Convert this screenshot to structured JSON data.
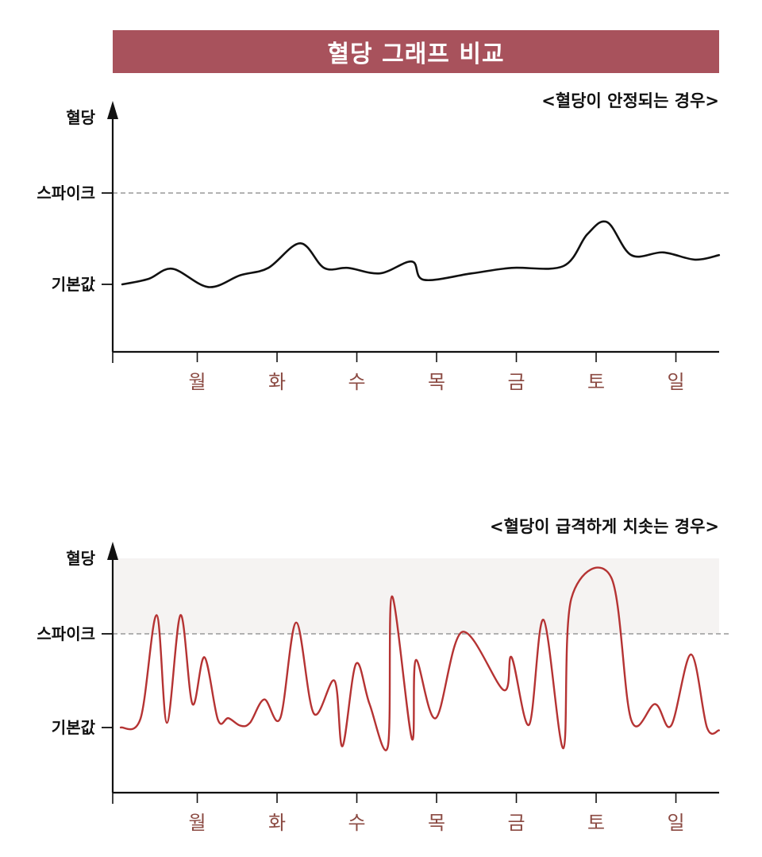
{
  "banner": {
    "title": "혈당 그래프 비교"
  },
  "colors": {
    "banner": "#a8525c",
    "stable_line": "#111111",
    "spike_line": "#b53333",
    "day_label": "#8b4a42",
    "danger_zone": "#f5f3f2",
    "threshold": "#999999"
  },
  "chart_data": [
    {
      "type": "line",
      "subtitle": "<혈당이 안정되는 경우>",
      "ylabel": "혈당",
      "y_levels": [
        "스파이크",
        "기본값"
      ],
      "categories": [
        "월",
        "화",
        "수",
        "목",
        "금",
        "토",
        "일"
      ],
      "grid": false,
      "spike_threshold_line": true,
      "xlim": [
        0,
        7.6
      ],
      "ylim": [
        -0.7,
        2.3
      ],
      "series": [
        {
          "x": [
            0.12,
            0.45,
            0.75,
            1.2,
            1.6,
            1.95,
            2.35,
            2.65,
            2.95,
            3.35,
            3.75,
            3.9,
            4.5,
            5.0,
            5.65,
            5.95,
            6.2,
            6.5,
            6.9,
            7.3,
            7.6
          ],
          "y": [
            0,
            0.06,
            0.17,
            -0.03,
            0.1,
            0.18,
            0.45,
            0.18,
            0.18,
            0.12,
            0.25,
            0.05,
            0.12,
            0.18,
            0.2,
            0.55,
            0.68,
            0.32,
            0.35,
            0.27,
            0.32
          ]
        }
      ]
    },
    {
      "type": "line",
      "subtitle": "<혈당이 급격하게 치솟는  경우>",
      "ylabel": "혈당",
      "y_levels": [
        "스파이크",
        "기본값"
      ],
      "categories": [
        "월",
        "화",
        "수",
        "목",
        "금",
        "토",
        "일"
      ],
      "grid": false,
      "spike_threshold_line": true,
      "shaded_region": "above-baseline-upper",
      "xlim": [
        0,
        7.6
      ],
      "ylim": [
        -0.7,
        2.3
      ],
      "series": [
        {
          "x": [
            0.1,
            0.35,
            0.55,
            0.68,
            0.85,
            1.0,
            1.15,
            1.32,
            1.45,
            1.6,
            1.72,
            1.9,
            2.1,
            2.3,
            2.52,
            2.78,
            2.88,
            3.05,
            3.22,
            3.45,
            3.5,
            3.75,
            3.8,
            4.05,
            4.38,
            4.9,
            5.0,
            5.22,
            5.4,
            5.65,
            5.75,
            6.25,
            6.5,
            6.8,
            7.0,
            7.25,
            7.45,
            7.6
          ],
          "y": [
            0,
            0.1,
            1.2,
            0.05,
            1.2,
            0.25,
            0.75,
            0.08,
            0.1,
            0.02,
            0.05,
            0.3,
            0.1,
            1.12,
            0.15,
            0.5,
            -0.2,
            0.68,
            0.25,
            -0.2,
            1.4,
            -0.12,
            0.72,
            0.1,
            1.02,
            0.4,
            0.75,
            0.03,
            1.15,
            -0.22,
            1.38,
            1.6,
            0.08,
            0.25,
            0.02,
            0.78,
            0.0,
            -0.03
          ]
        }
      ]
    }
  ]
}
